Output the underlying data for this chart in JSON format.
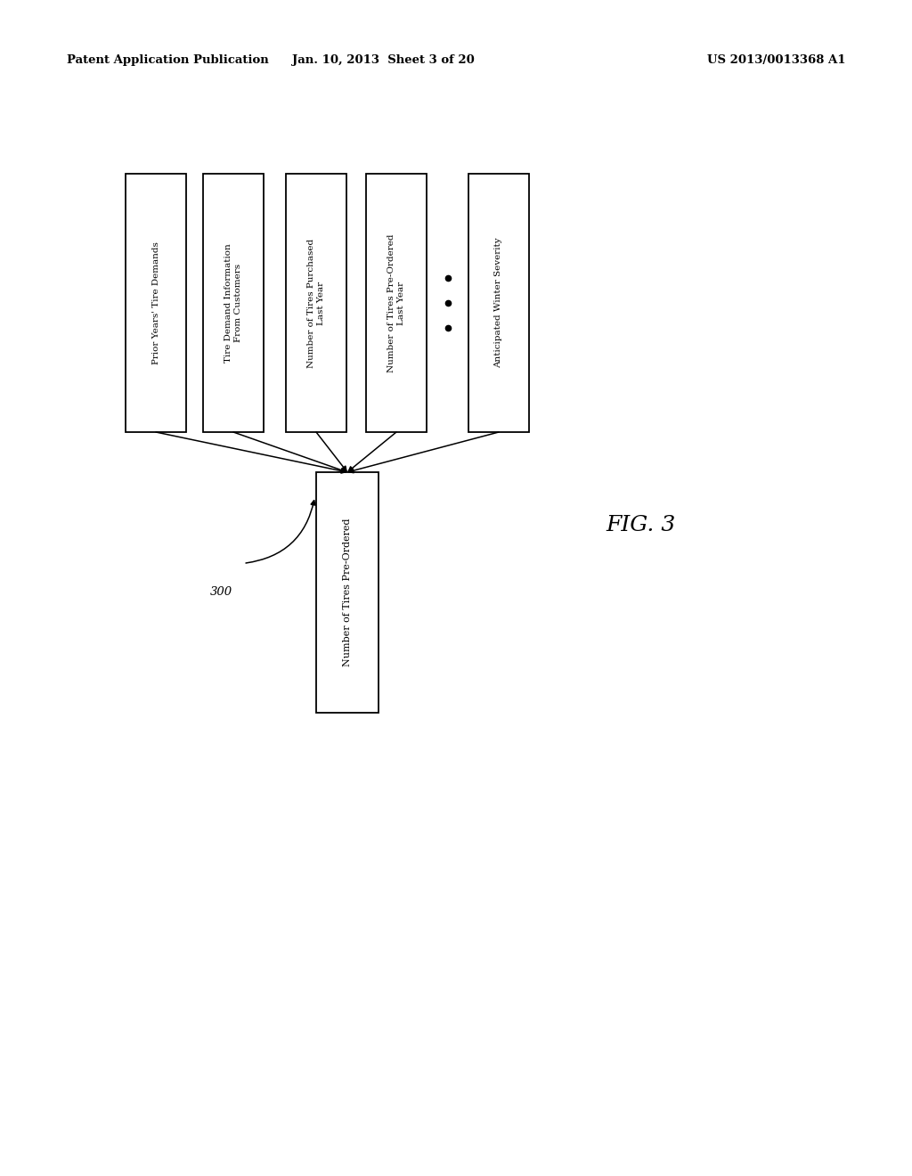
{
  "header_left": "Patent Application Publication",
  "header_mid": "Jan. 10, 2013  Sheet 3 of 20",
  "header_right": "US 2013/0013368 A1",
  "fig_label": "FIG. 3",
  "diagram_label": "300",
  "input_boxes": [
    "Prior Years' Tire Demands",
    "Tire Demand Information\nFrom Customers",
    "Number of Tires Purchased\nLast Year",
    "Number of Tires Pre-Ordered\nLast Year",
    "Anticipated Winter Severity"
  ],
  "output_box": "Number of Tires Pre-Ordered",
  "bg_color": "#ffffff",
  "box_edge_color": "#000000",
  "text_color": "#000000",
  "arrow_color": "#000000",
  "font_size": 7.5,
  "header_font_size": 9
}
